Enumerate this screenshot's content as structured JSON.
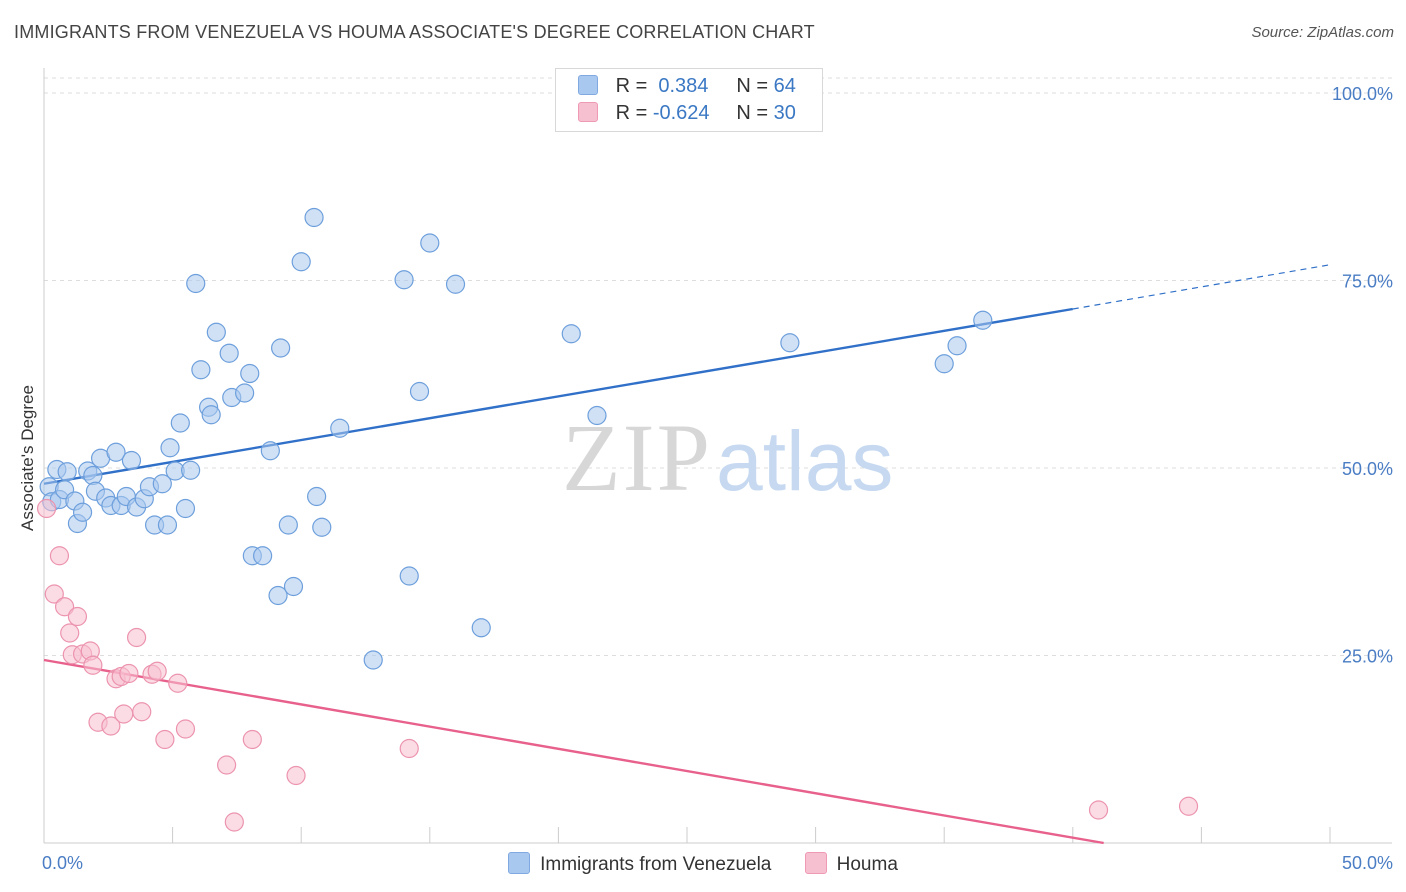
{
  "title": "IMMIGRANTS FROM VENEZUELA VS HOUMA ASSOCIATE'S DEGREE CORRELATION CHART",
  "source": "Source: ZipAtlas.com",
  "watermark": {
    "zip": "ZIP",
    "atlas": "atlas"
  },
  "legend": {
    "rows": [
      {
        "r_label": "R =",
        "r_value": " 0.384",
        "n_label": "N =",
        "n_value": "64",
        "color": "#a9c8ef",
        "border": "#7fa9e0"
      },
      {
        "r_label": "R =",
        "r_value": "-0.624",
        "n_label": "N =",
        "n_value": "30",
        "color": "#f7c0d0",
        "border": "#ee9ab4"
      }
    ]
  },
  "bottom_legend": [
    "Immigrants from Venezuela",
    "Houma"
  ],
  "chart_data": {
    "type": "scatter",
    "xlabel": "",
    "ylabel": "Associate's Degree",
    "xlim": [
      0,
      50
    ],
    "ylim": [
      0,
      102
    ],
    "x_tick_labels": [
      "0.0%",
      "50.0%"
    ],
    "y_ticks": [
      25,
      50,
      75,
      100
    ],
    "y_tick_labels": [
      "25.0%",
      "50.0%",
      "75.0%",
      "100.0%"
    ],
    "grid": "horizontal dashed",
    "legend_position": "top-center",
    "series": [
      {
        "name": "Immigrants from Venezuela",
        "color": "#a9c8ef",
        "stroke": "#6d9fdc",
        "line_color": "#3070c8",
        "trend": {
          "x0": 0,
          "y0": 47.9,
          "x1": 40,
          "y1": 71.2,
          "dash_to_x": 50,
          "dash_to_y": 77.1
        },
        "points": [
          [
            0.2,
            47.5
          ],
          [
            0.3,
            45.5
          ],
          [
            0.5,
            49.8
          ],
          [
            0.6,
            45.8
          ],
          [
            0.8,
            47.1
          ],
          [
            0.9,
            49.5
          ],
          [
            1.2,
            45.6
          ],
          [
            1.3,
            42.6
          ],
          [
            1.5,
            44.1
          ],
          [
            1.7,
            49.6
          ],
          [
            1.9,
            49.0
          ],
          [
            2.0,
            46.9
          ],
          [
            2.2,
            51.3
          ],
          [
            2.4,
            46.0
          ],
          [
            2.6,
            45.0
          ],
          [
            2.8,
            52.1
          ],
          [
            3.0,
            45.0
          ],
          [
            3.2,
            46.2
          ],
          [
            3.4,
            51.0
          ],
          [
            3.6,
            44.8
          ],
          [
            3.9,
            45.9
          ],
          [
            4.1,
            47.5
          ],
          [
            4.3,
            42.4
          ],
          [
            4.6,
            47.9
          ],
          [
            4.8,
            42.4
          ],
          [
            4.9,
            52.7
          ],
          [
            5.1,
            49.6
          ],
          [
            5.3,
            56.0
          ],
          [
            5.5,
            44.6
          ],
          [
            5.7,
            49.7
          ],
          [
            5.9,
            74.6
          ],
          [
            6.1,
            63.1
          ],
          [
            6.4,
            58.1
          ],
          [
            6.5,
            57.1
          ],
          [
            6.7,
            68.1
          ],
          [
            7.2,
            65.3
          ],
          [
            7.3,
            59.4
          ],
          [
            7.8,
            60.0
          ],
          [
            8.0,
            62.6
          ],
          [
            8.1,
            38.3
          ],
          [
            8.5,
            38.3
          ],
          [
            8.8,
            52.3
          ],
          [
            9.1,
            33.0
          ],
          [
            9.2,
            66.0
          ],
          [
            9.5,
            42.4
          ],
          [
            9.7,
            34.2
          ],
          [
            10.0,
            77.5
          ],
          [
            10.5,
            83.4
          ],
          [
            10.6,
            46.2
          ],
          [
            10.8,
            42.1
          ],
          [
            11.5,
            55.3
          ],
          [
            12.8,
            24.4
          ],
          [
            14.0,
            75.1
          ],
          [
            14.2,
            35.6
          ],
          [
            14.6,
            60.2
          ],
          [
            15.0,
            80.0
          ],
          [
            16.0,
            74.5
          ],
          [
            17.0,
            28.7
          ],
          [
            20.5,
            67.9
          ],
          [
            21.5,
            57.0
          ],
          [
            29.0,
            66.7
          ],
          [
            35.0,
            63.9
          ],
          [
            35.5,
            66.3
          ],
          [
            36.5,
            69.7
          ]
        ]
      },
      {
        "name": "Houma",
        "color": "#f7c0d0",
        "stroke": "#ec93ae",
        "line_color": "#e8608c",
        "trend": {
          "x0": 0,
          "y0": 24.4,
          "x1": 41.2,
          "y1": 0.0
        },
        "points": [
          [
            0.1,
            44.6
          ],
          [
            0.4,
            33.2
          ],
          [
            0.6,
            38.3
          ],
          [
            0.8,
            31.5
          ],
          [
            1.0,
            28.0
          ],
          [
            1.1,
            25.1
          ],
          [
            1.3,
            30.2
          ],
          [
            1.5,
            25.2
          ],
          [
            1.8,
            25.6
          ],
          [
            1.9,
            23.7
          ],
          [
            2.1,
            16.1
          ],
          [
            2.6,
            15.6
          ],
          [
            2.8,
            21.9
          ],
          [
            3.0,
            22.2
          ],
          [
            3.1,
            17.2
          ],
          [
            3.3,
            22.6
          ],
          [
            3.6,
            27.4
          ],
          [
            3.8,
            17.5
          ],
          [
            4.2,
            22.5
          ],
          [
            4.4,
            22.9
          ],
          [
            4.7,
            13.8
          ],
          [
            5.2,
            21.3
          ],
          [
            5.5,
            15.2
          ],
          [
            7.1,
            10.4
          ],
          [
            7.4,
            2.8
          ],
          [
            8.1,
            13.8
          ],
          [
            9.8,
            9.0
          ],
          [
            14.2,
            12.6
          ],
          [
            41.0,
            4.4
          ],
          [
            44.5,
            4.9
          ]
        ]
      }
    ]
  }
}
